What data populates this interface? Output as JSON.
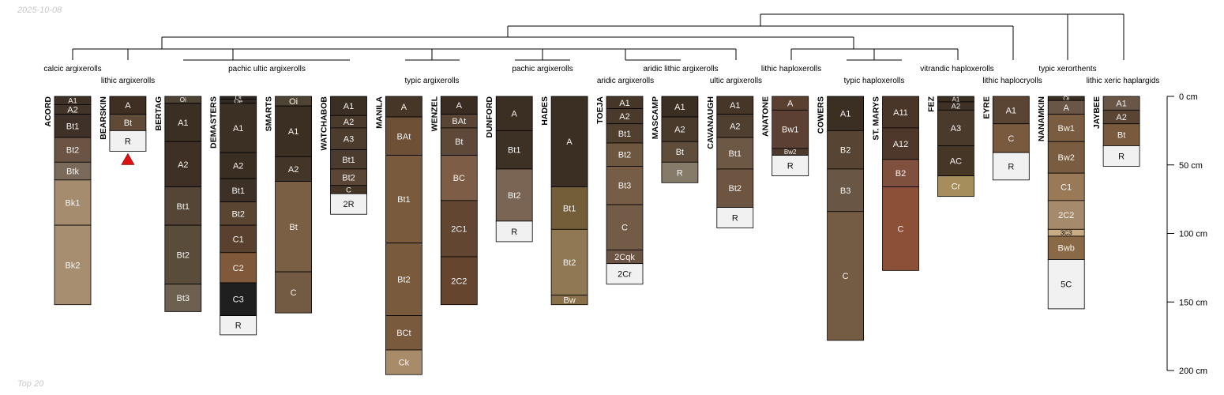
{
  "header": {
    "date": "2025-10-08"
  },
  "footer": {
    "note": "Top 20"
  },
  "colors": {
    "line": "#000000",
    "marker": "#dd1111"
  },
  "depth_axis": {
    "max": 200,
    "ticks": [
      {
        "value": 0,
        "label": "0 cm"
      },
      {
        "value": 50,
        "label": "50 cm"
      },
      {
        "value": 100,
        "label": "100 cm"
      },
      {
        "value": 150,
        "label": "150 cm"
      },
      {
        "value": 200,
        "label": "200 cm"
      }
    ]
  },
  "taxa": [
    {
      "label": "calcic argixerolls"
    },
    {
      "label": "lithic argixerolls"
    },
    {
      "label": "pachic ultic argixerolls"
    },
    {
      "label": "typic argixerolls"
    },
    {
      "label": "pachic argixerolls"
    },
    {
      "label": "aridic argixerolls"
    },
    {
      "label": "aridic lithic argixerolls"
    },
    {
      "label": "ultic argixerolls"
    },
    {
      "label": "lithic haploxerolls"
    },
    {
      "label": "typic haploxerolls"
    },
    {
      "label": "vitrandic haploxerolls"
    },
    {
      "label": "lithic haplocryolls"
    },
    {
      "label": "typic xerorthents"
    },
    {
      "label": "lithic xeric haplargids"
    }
  ],
  "profiles": [
    {
      "name": "ACORD",
      "horizons": [
        {
          "name": "A1",
          "top": 0,
          "bottom": 6,
          "color": "#3e3024"
        },
        {
          "name": "A2",
          "top": 6,
          "bottom": 13,
          "color": "#43342a"
        },
        {
          "name": "Bt1",
          "top": 13,
          "bottom": 30,
          "color": "#3f3128"
        },
        {
          "name": "Bt2",
          "top": 30,
          "bottom": 48,
          "color": "#6b5444"
        },
        {
          "name": "Btk",
          "top": 48,
          "bottom": 61,
          "color": "#7a6a5b"
        },
        {
          "name": "Bk1",
          "top": 61,
          "bottom": 94,
          "color": "#a58c6f"
        },
        {
          "name": "Bk2",
          "top": 94,
          "bottom": 152,
          "color": "#a88e70"
        }
      ]
    },
    {
      "name": "BEARSKIN",
      "marker": true,
      "horizons": [
        {
          "name": "A",
          "top": 0,
          "bottom": 13,
          "color": "#3e2f22"
        },
        {
          "name": "Bt",
          "top": 13,
          "bottom": 25,
          "color": "#5e4a36"
        },
        {
          "name": "R",
          "top": 25,
          "bottom": 40,
          "color": "#f1f1f1"
        }
      ]
    },
    {
      "name": "BERTAG",
      "horizons": [
        {
          "name": "Oi",
          "top": 0,
          "bottom": 5,
          "color": "#4f4333"
        },
        {
          "name": "A1",
          "top": 5,
          "bottom": 33,
          "color": "#3b2e22"
        },
        {
          "name": "A2",
          "top": 33,
          "bottom": 66,
          "color": "#3e3024"
        },
        {
          "name": "Bt1",
          "top": 66,
          "bottom": 94,
          "color": "#544536"
        },
        {
          "name": "Bt2",
          "top": 94,
          "bottom": 137,
          "color": "#594c3b"
        },
        {
          "name": "Bt3",
          "top": 137,
          "bottom": 157,
          "color": "#6e6050"
        }
      ]
    },
    {
      "name": "DEMASTERS",
      "horizons": [
        {
          "name": "Oi",
          "top": 0,
          "bottom": 2,
          "color": "#2e261e"
        },
        {
          "name": "Oe",
          "top": 2,
          "bottom": 5,
          "color": "#332a21"
        },
        {
          "name": "A1",
          "top": 5,
          "bottom": 41,
          "color": "#3c2f24"
        },
        {
          "name": "A2",
          "top": 41,
          "bottom": 60,
          "color": "#3a2d22"
        },
        {
          "name": "Bt1",
          "top": 60,
          "bottom": 77,
          "color": "#3d3026"
        },
        {
          "name": "Bt2",
          "top": 77,
          "bottom": 94,
          "color": "#5a4533"
        },
        {
          "name": "C1",
          "top": 94,
          "bottom": 114,
          "color": "#5a412f"
        },
        {
          "name": "C2",
          "top": 114,
          "bottom": 136,
          "color": "#80583a"
        },
        {
          "name": "C3",
          "top": 136,
          "bottom": 160,
          "color": "#1f1f1f"
        },
        {
          "name": "R",
          "top": 160,
          "bottom": 174,
          "color": "#f1f1f1"
        }
      ]
    },
    {
      "name": "SMARTS",
      "horizons": [
        {
          "name": "Oi",
          "top": 0,
          "bottom": 7,
          "color": "#4f4333"
        },
        {
          "name": "A1",
          "top": 7,
          "bottom": 44,
          "color": "#3b2e22"
        },
        {
          "name": "A2",
          "top": 44,
          "bottom": 62,
          "color": "#433527"
        },
        {
          "name": "Bt",
          "top": 62,
          "bottom": 128,
          "color": "#7a5f44"
        },
        {
          "name": "C",
          "top": 128,
          "bottom": 158,
          "color": "#735a42"
        }
      ]
    },
    {
      "name": "WATCHABOB",
      "horizons": [
        {
          "name": "A1",
          "top": 0,
          "bottom": 14,
          "color": "#3b2e22"
        },
        {
          "name": "A2",
          "top": 14,
          "bottom": 23,
          "color": "#4a3a2c"
        },
        {
          "name": "A3",
          "top": 23,
          "bottom": 39,
          "color": "#4c3c2e"
        },
        {
          "name": "Bt1",
          "top": 39,
          "bottom": 53,
          "color": "#4b3b2e"
        },
        {
          "name": "Bt2",
          "top": 53,
          "bottom": 65,
          "color": "#5b4535"
        },
        {
          "name": "C",
          "top": 65,
          "bottom": 71,
          "color": "#453527"
        },
        {
          "name": "2R",
          "top": 71,
          "bottom": 86,
          "color": "#f1f1f1"
        }
      ]
    },
    {
      "name": "MANILA",
      "horizons": [
        {
          "name": "A",
          "top": 0,
          "bottom": 15,
          "color": "#463628"
        },
        {
          "name": "BAt",
          "top": 15,
          "bottom": 43,
          "color": "#6d5036"
        },
        {
          "name": "Bt1",
          "top": 43,
          "bottom": 107,
          "color": "#7a5a3c"
        },
        {
          "name": "Bt2",
          "top": 107,
          "bottom": 160,
          "color": "#7a5a3c"
        },
        {
          "name": "BCt",
          "top": 160,
          "bottom": 185,
          "color": "#7a5a3c"
        },
        {
          "name": "Ck",
          "top": 185,
          "bottom": 203,
          "color": "#a88c6a"
        }
      ]
    },
    {
      "name": "WENZEL",
      "horizons": [
        {
          "name": "A",
          "top": 0,
          "bottom": 13,
          "color": "#3b2c21"
        },
        {
          "name": "BAt",
          "top": 13,
          "bottom": 23,
          "color": "#5a4434"
        },
        {
          "name": "Bt",
          "top": 23,
          "bottom": 43,
          "color": "#5e4838"
        },
        {
          "name": "BC",
          "top": 43,
          "bottom": 76,
          "color": "#7d5d45"
        },
        {
          "name": "2C1",
          "top": 76,
          "bottom": 117,
          "color": "#634632"
        },
        {
          "name": "2C2",
          "top": 117,
          "bottom": 152,
          "color": "#66452e"
        }
      ]
    },
    {
      "name": "DUNFORD",
      "horizons": [
        {
          "name": "A",
          "top": 0,
          "bottom": 25,
          "color": "#3b2e22"
        },
        {
          "name": "Bt1",
          "top": 25,
          "bottom": 53,
          "color": "#3d3024"
        },
        {
          "name": "Bt2",
          "top": 53,
          "bottom": 91,
          "color": "#7a6454"
        },
        {
          "name": "R",
          "top": 91,
          "bottom": 106,
          "color": "#f1f1f1"
        }
      ]
    },
    {
      "name": "HADES",
      "horizons": [
        {
          "name": "A",
          "top": 0,
          "bottom": 66,
          "color": "#3b2e22"
        },
        {
          "name": "Bt1",
          "top": 66,
          "bottom": 97,
          "color": "#745e3a"
        },
        {
          "name": "Bt2",
          "top": 97,
          "bottom": 145,
          "color": "#8f7852"
        },
        {
          "name": "Bw",
          "top": 145,
          "bottom": 152,
          "color": "#8a7048"
        }
      ]
    },
    {
      "name": "TOEJA",
      "horizons": [
        {
          "name": "A1",
          "top": 0,
          "bottom": 9,
          "color": "#463628"
        },
        {
          "name": "A2",
          "top": 9,
          "bottom": 20,
          "color": "#4a3a2c"
        },
        {
          "name": "Bt1",
          "top": 20,
          "bottom": 34,
          "color": "#52402f"
        },
        {
          "name": "Bt2",
          "top": 34,
          "bottom": 51,
          "color": "#6e573f"
        },
        {
          "name": "Bt3",
          "top": 51,
          "bottom": 79,
          "color": "#765d45"
        },
        {
          "name": "C",
          "top": 79,
          "bottom": 112,
          "color": "#735c47"
        },
        {
          "name": "2Cqk",
          "top": 112,
          "bottom": 122,
          "color": "#6b5443"
        },
        {
          "name": "2Cr",
          "top": 122,
          "bottom": 137,
          "color": "#f1f1f1"
        }
      ]
    },
    {
      "name": "MASCAMP",
      "horizons": [
        {
          "name": "A1",
          "top": 0,
          "bottom": 15,
          "color": "#3b2e22"
        },
        {
          "name": "A2",
          "top": 15,
          "bottom": 33,
          "color": "#4a3a2c"
        },
        {
          "name": "Bt",
          "top": 33,
          "bottom": 48,
          "color": "#604c3a"
        },
        {
          "name": "R",
          "top": 48,
          "bottom": 63,
          "color": "#857b68"
        }
      ]
    },
    {
      "name": "CAVANAUGH",
      "horizons": [
        {
          "name": "A1",
          "top": 0,
          "bottom": 13,
          "color": "#463628"
        },
        {
          "name": "A2",
          "top": 13,
          "bottom": 30,
          "color": "#4f3f31"
        },
        {
          "name": "Bt1",
          "top": 30,
          "bottom": 53,
          "color": "#6d5745"
        },
        {
          "name": "Bt2",
          "top": 53,
          "bottom": 81,
          "color": "#6e5541"
        },
        {
          "name": "R",
          "top": 81,
          "bottom": 96,
          "color": "#f1f1f1"
        }
      ]
    },
    {
      "name": "ANATONE",
      "horizons": [
        {
          "name": "A",
          "top": 0,
          "bottom": 10,
          "color": "#5a4030"
        },
        {
          "name": "Bw1",
          "top": 10,
          "bottom": 38,
          "color": "#5c4033"
        },
        {
          "name": "Bw2",
          "top": 38,
          "bottom": 43,
          "color": "#4e3a2c"
        },
        {
          "name": "R",
          "top": 43,
          "bottom": 58,
          "color": "#f1f1f1"
        }
      ]
    },
    {
      "name": "COWERS",
      "horizons": [
        {
          "name": "A1",
          "top": 0,
          "bottom": 25,
          "color": "#3b2e22"
        },
        {
          "name": "B2",
          "top": 25,
          "bottom": 53,
          "color": "#574432"
        },
        {
          "name": "B3",
          "top": 53,
          "bottom": 84,
          "color": "#6a5644"
        },
        {
          "name": "C",
          "top": 84,
          "bottom": 178,
          "color": "#735c43"
        }
      ]
    },
    {
      "name": "ST. MARYS",
      "horizons": [
        {
          "name": "A11",
          "top": 0,
          "bottom": 23,
          "color": "#4a3628"
        },
        {
          "name": "A12",
          "top": 23,
          "bottom": 46,
          "color": "#4e382b"
        },
        {
          "name": "B2",
          "top": 46,
          "bottom": 66,
          "color": "#80503f"
        },
        {
          "name": "C",
          "top": 66,
          "bottom": 127,
          "color": "#8c4f38"
        }
      ]
    },
    {
      "name": "FEZ",
      "horizons": [
        {
          "name": "A1",
          "top": 0,
          "bottom": 4,
          "color": "#3b2e22"
        },
        {
          "name": "A2",
          "top": 4,
          "bottom": 10,
          "color": "#3f3125"
        },
        {
          "name": "A3",
          "top": 10,
          "bottom": 36,
          "color": "#4a3a2c"
        },
        {
          "name": "AC",
          "top": 36,
          "bottom": 58,
          "color": "#463626"
        },
        {
          "name": "Cr",
          "top": 58,
          "bottom": 73,
          "color": "#a58e5c"
        }
      ]
    },
    {
      "name": "EYRE",
      "horizons": [
        {
          "name": "A1",
          "top": 0,
          "bottom": 20,
          "color": "#5a4434"
        },
        {
          "name": "C",
          "top": 20,
          "bottom": 41,
          "color": "#7a5a3e"
        },
        {
          "name": "R",
          "top": 41,
          "bottom": 61,
          "color": "#f1f1f1"
        }
      ]
    },
    {
      "name": "NANAMKIN",
      "horizons": [
        {
          "name": "Oi",
          "top": 0,
          "bottom": 3,
          "color": "#3b2e22"
        },
        {
          "name": "A",
          "top": 3,
          "bottom": 13,
          "color": "#6a5646"
        },
        {
          "name": "Bw1",
          "top": 13,
          "bottom": 33,
          "color": "#7a5c40"
        },
        {
          "name": "Bw2",
          "top": 33,
          "bottom": 56,
          "color": "#7a5c40"
        },
        {
          "name": "C1",
          "top": 56,
          "bottom": 76,
          "color": "#9a7a56"
        },
        {
          "name": "2C2",
          "top": 76,
          "bottom": 97,
          "color": "#a58a6c"
        },
        {
          "name": "3C3",
          "top": 97,
          "bottom": 102,
          "color": "#c9aa82"
        },
        {
          "name": "Bwb",
          "top": 102,
          "bottom": 119,
          "color": "#8a6a46"
        },
        {
          "name": "5C",
          "top": 119,
          "bottom": 155,
          "color": "#f1f1f1"
        }
      ]
    },
    {
      "name": "JAYBEE",
      "horizons": [
        {
          "name": "A1",
          "top": 0,
          "bottom": 10,
          "color": "#6a5646"
        },
        {
          "name": "A2",
          "top": 10,
          "bottom": 20,
          "color": "#5a4434"
        },
        {
          "name": "Bt",
          "top": 20,
          "bottom": 36,
          "color": "#7a5a3c"
        },
        {
          "name": "R",
          "top": 36,
          "bottom": 51,
          "color": "#f1f1f1"
        }
      ]
    }
  ]
}
